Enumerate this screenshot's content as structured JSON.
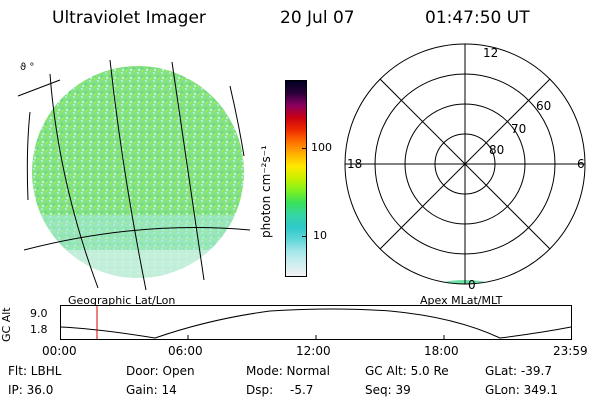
{
  "header": {
    "instrument": "Ultraviolet Imager",
    "date": "20 Jul 07",
    "time": "01:47:50 UT"
  },
  "colorbar": {
    "unit_label": "photon cm⁻²s⁻¹",
    "ticks": [
      "100",
      "10"
    ],
    "colors": [
      "#f2f2f2",
      "#cfeef0",
      "#a6e7ea",
      "#5fd7d8",
      "#2ec9c9",
      "#36d6a6",
      "#39e05a",
      "#7ff01f",
      "#c8f000",
      "#ffe800",
      "#ffb000",
      "#ff7000",
      "#ee2a00",
      "#c80010",
      "#8a0060",
      "#2a003a",
      "#000020"
    ]
  },
  "polar_plot": {
    "top_label": "12",
    "left_label": "18",
    "right_label": "6",
    "bottom_label": "0",
    "rings": [
      "60",
      "70",
      "80"
    ]
  },
  "captions": {
    "left": "Geographic Lat/Lon",
    "right": "Apex MLat/MLT"
  },
  "gc_plot": {
    "ylabel": "GC Alt",
    "yticks": [
      "9.0",
      "1.8"
    ],
    "xticks": [
      "00:00",
      "06:00",
      "12:00",
      "18:00",
      "23:59"
    ]
  },
  "status": {
    "flt": "Flt: LBHL",
    "ip": "IP: 36.0",
    "door": "Door: Open",
    "gain": "Gain: 14",
    "mode": "Mode: Normal",
    "dsp_label": "Dsp:",
    "dsp_value": "-5.7",
    "gc_alt": "GC Alt: 5.0 Re",
    "seq": "Seq: 39",
    "glat": "GLat: -39.7",
    "glon": "GLon: 349.1"
  },
  "colors": {
    "marker_line": "#dd0000",
    "disk_base": "#7fe07a",
    "disk_cyan": "#9ae8e4"
  }
}
